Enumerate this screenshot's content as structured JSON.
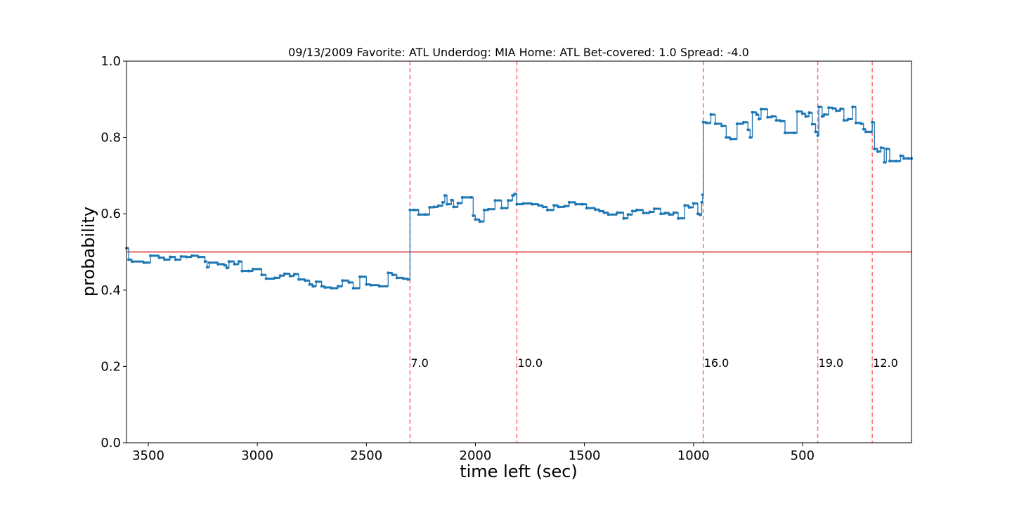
{
  "chart_data": {
    "type": "line",
    "title": "09/13/2009 Favorite: ATL Underdog: MIA Home: ATL Bet-covered: 1.0 Spread: -4.0",
    "xlabel": "time left (sec)",
    "ylabel": "probability",
    "xlim": [
      3600,
      0
    ],
    "ylim": [
      0.0,
      1.0
    ],
    "x_inverted": true,
    "x_ticks": [
      3500,
      3000,
      2500,
      2000,
      1500,
      1000,
      500
    ],
    "x_tick_labels": [
      "3500",
      "3000",
      "2500",
      "2000",
      "1500",
      "1000",
      "500"
    ],
    "y_ticks": [
      0.0,
      0.2,
      0.4,
      0.6,
      0.8,
      1.0
    ],
    "y_tick_labels": [
      "0.0",
      "0.2",
      "0.4",
      "0.6",
      "0.8",
      "1.0"
    ],
    "grid": false,
    "reference_line": {
      "y": 0.5,
      "color": "#d62728"
    },
    "events": [
      {
        "x": 2300,
        "label": "7.0"
      },
      {
        "x": 1810,
        "label": "10.0"
      },
      {
        "x": 955,
        "label": "16.0"
      },
      {
        "x": 430,
        "label": "19.0"
      },
      {
        "x": 180,
        "label": "12.0"
      }
    ],
    "series": [
      {
        "color": "#1f77b4",
        "points": [
          [
            3600,
            0.51
          ],
          [
            3590,
            0.48
          ],
          [
            3575,
            0.475
          ],
          [
            3520,
            0.472
          ],
          [
            3490,
            0.49
          ],
          [
            3450,
            0.485
          ],
          [
            3425,
            0.48
          ],
          [
            3400,
            0.487
          ],
          [
            3375,
            0.48
          ],
          [
            3350,
            0.488
          ],
          [
            3325,
            0.487
          ],
          [
            3300,
            0.49
          ],
          [
            3270,
            0.487
          ],
          [
            3240,
            0.475
          ],
          [
            3230,
            0.46
          ],
          [
            3220,
            0.472
          ],
          [
            3180,
            0.468
          ],
          [
            3150,
            0.465
          ],
          [
            3140,
            0.458
          ],
          [
            3130,
            0.475
          ],
          [
            3105,
            0.468
          ],
          [
            3085,
            0.475
          ],
          [
            3070,
            0.45
          ],
          [
            3040,
            0.45
          ],
          [
            3020,
            0.455
          ],
          [
            2980,
            0.44
          ],
          [
            2960,
            0.43
          ],
          [
            2920,
            0.432
          ],
          [
            2895,
            0.438
          ],
          [
            2875,
            0.443
          ],
          [
            2850,
            0.437
          ],
          [
            2830,
            0.442
          ],
          [
            2810,
            0.428
          ],
          [
            2780,
            0.425
          ],
          [
            2760,
            0.415
          ],
          [
            2745,
            0.41
          ],
          [
            2730,
            0.422
          ],
          [
            2705,
            0.41
          ],
          [
            2690,
            0.407
          ],
          [
            2660,
            0.405
          ],
          [
            2630,
            0.41
          ],
          [
            2610,
            0.425
          ],
          [
            2580,
            0.42
          ],
          [
            2560,
            0.405
          ],
          [
            2530,
            0.435
          ],
          [
            2500,
            0.415
          ],
          [
            2480,
            0.413
          ],
          [
            2440,
            0.41
          ],
          [
            2400,
            0.445
          ],
          [
            2380,
            0.44
          ],
          [
            2360,
            0.432
          ],
          [
            2330,
            0.43
          ],
          [
            2310,
            0.428
          ],
          [
            2300,
            0.61
          ],
          [
            2280,
            0.61
          ],
          [
            2260,
            0.598
          ],
          [
            2230,
            0.598
          ],
          [
            2210,
            0.617
          ],
          [
            2190,
            0.618
          ],
          [
            2170,
            0.621
          ],
          [
            2150,
            0.63
          ],
          [
            2140,
            0.648
          ],
          [
            2130,
            0.625
          ],
          [
            2110,
            0.636
          ],
          [
            2100,
            0.618
          ],
          [
            2080,
            0.628
          ],
          [
            2060,
            0.643
          ],
          [
            2020,
            0.643
          ],
          [
            2010,
            0.595
          ],
          [
            2000,
            0.585
          ],
          [
            1980,
            0.58
          ],
          [
            1960,
            0.61
          ],
          [
            1940,
            0.612
          ],
          [
            1910,
            0.635
          ],
          [
            1880,
            0.615
          ],
          [
            1850,
            0.635
          ],
          [
            1830,
            0.648
          ],
          [
            1820,
            0.652
          ],
          [
            1810,
            0.625
          ],
          [
            1780,
            0.627
          ],
          [
            1740,
            0.625
          ],
          [
            1710,
            0.622
          ],
          [
            1690,
            0.618
          ],
          [
            1670,
            0.61
          ],
          [
            1640,
            0.622
          ],
          [
            1620,
            0.618
          ],
          [
            1590,
            0.62
          ],
          [
            1570,
            0.63
          ],
          [
            1540,
            0.625
          ],
          [
            1510,
            0.625
          ],
          [
            1490,
            0.615
          ],
          [
            1450,
            0.611
          ],
          [
            1430,
            0.607
          ],
          [
            1410,
            0.603
          ],
          [
            1390,
            0.598
          ],
          [
            1350,
            0.603
          ],
          [
            1320,
            0.588
          ],
          [
            1300,
            0.598
          ],
          [
            1280,
            0.607
          ],
          [
            1260,
            0.61
          ],
          [
            1230,
            0.602
          ],
          [
            1200,
            0.605
          ],
          [
            1180,
            0.613
          ],
          [
            1150,
            0.6
          ],
          [
            1130,
            0.602
          ],
          [
            1110,
            0.598
          ],
          [
            1090,
            0.603
          ],
          [
            1070,
            0.588
          ],
          [
            1040,
            0.622
          ],
          [
            1020,
            0.617
          ],
          [
            1000,
            0.627
          ],
          [
            980,
            0.6
          ],
          [
            970,
            0.597
          ],
          [
            962,
            0.63
          ],
          [
            958,
            0.65
          ],
          [
            955,
            0.84
          ],
          [
            940,
            0.838
          ],
          [
            920,
            0.86
          ],
          [
            900,
            0.836
          ],
          [
            870,
            0.83
          ],
          [
            850,
            0.8
          ],
          [
            830,
            0.796
          ],
          [
            800,
            0.836
          ],
          [
            770,
            0.84
          ],
          [
            750,
            0.82
          ],
          [
            740,
            0.8
          ],
          [
            730,
            0.866
          ],
          [
            710,
            0.86
          ],
          [
            700,
            0.848
          ],
          [
            690,
            0.874
          ],
          [
            660,
            0.853
          ],
          [
            640,
            0.855
          ],
          [
            620,
            0.845
          ],
          [
            600,
            0.843
          ],
          [
            580,
            0.812
          ],
          [
            540,
            0.812
          ],
          [
            525,
            0.868
          ],
          [
            500,
            0.862
          ],
          [
            485,
            0.855
          ],
          [
            470,
            0.865
          ],
          [
            455,
            0.835
          ],
          [
            440,
            0.815
          ],
          [
            430,
            0.805
          ],
          [
            425,
            0.88
          ],
          [
            410,
            0.855
          ],
          [
            400,
            0.86
          ],
          [
            380,
            0.878
          ],
          [
            360,
            0.876
          ],
          [
            345,
            0.87
          ],
          [
            325,
            0.875
          ],
          [
            310,
            0.845
          ],
          [
            290,
            0.848
          ],
          [
            270,
            0.88
          ],
          [
            255,
            0.838
          ],
          [
            230,
            0.836
          ],
          [
            220,
            0.822
          ],
          [
            210,
            0.815
          ],
          [
            185,
            0.815
          ],
          [
            180,
            0.84
          ],
          [
            170,
            0.77
          ],
          [
            155,
            0.763
          ],
          [
            140,
            0.773
          ],
          [
            125,
            0.735
          ],
          [
            115,
            0.77
          ],
          [
            100,
            0.738
          ],
          [
            70,
            0.738
          ],
          [
            50,
            0.752
          ],
          [
            35,
            0.745
          ],
          [
            15,
            0.745
          ],
          [
            0,
            0.745
          ]
        ]
      }
    ]
  }
}
